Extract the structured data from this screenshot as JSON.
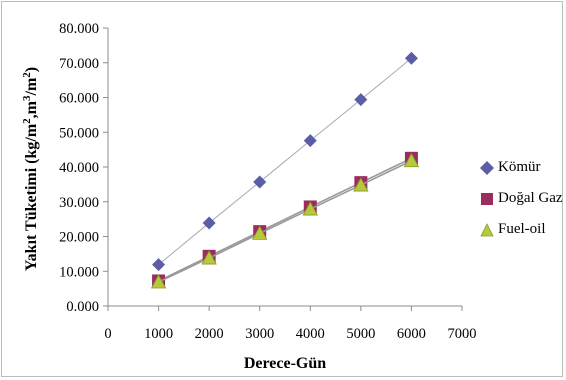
{
  "chart_data": {
    "type": "scatter",
    "xlabel": "Derece-Gün",
    "ylabel": "Yakıt Tüketimi (kg/m², m³/m²)",
    "ylabel_parts": {
      "prefix": "Yakıt Tüketimi (kg/m",
      "sup1": "2",
      "middle": ",m",
      "sup2": "3",
      "middle2": "/m",
      "sup3": "2",
      "suffix": ")"
    },
    "xlim": [
      0,
      7000
    ],
    "ylim": [
      0,
      80
    ],
    "x_ticks": [
      0,
      1000,
      2000,
      3000,
      4000,
      5000,
      6000,
      7000
    ],
    "x_tick_labels": [
      "0",
      "1000",
      "2000",
      "3000",
      "4000",
      "5000",
      "6000",
      "7000"
    ],
    "y_ticks": [
      0,
      10,
      20,
      30,
      40,
      50,
      60,
      70,
      80
    ],
    "y_tick_labels": [
      "0.000",
      "10.000",
      "20.000",
      "30.000",
      "40.000",
      "50.000",
      "60.000",
      "70.000",
      "80.000"
    ],
    "grid": false,
    "legend_position": "right",
    "x": [
      1000,
      2000,
      3000,
      4000,
      5000,
      6000
    ],
    "series": [
      {
        "name": "Kömür",
        "marker": "diamond",
        "color": "#5b5ea6",
        "values": [
          11.9,
          23.9,
          35.7,
          47.6,
          59.4,
          71.3
        ]
      },
      {
        "name": "Doğal Gaz",
        "marker": "square",
        "color": "#9b2d5e",
        "values": [
          7.2,
          14.3,
          21.4,
          28.5,
          35.5,
          42.5
        ]
      },
      {
        "name": "Fuel-oil",
        "marker": "triangle",
        "color": "#b5c93a",
        "values": [
          6.9,
          13.8,
          20.9,
          27.9,
          34.8,
          41.8
        ]
      }
    ]
  }
}
